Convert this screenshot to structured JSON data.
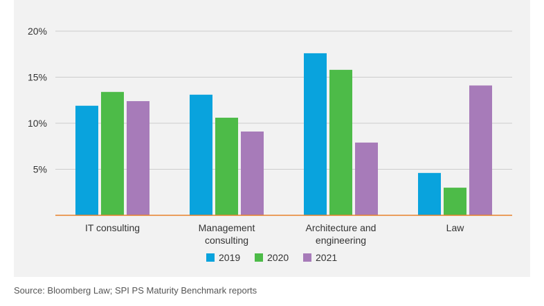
{
  "chart_data": {
    "type": "bar",
    "categories": [
      [
        "IT consulting"
      ],
      [
        "Management",
        "consulting"
      ],
      [
        "Architecture and",
        "engineering"
      ],
      [
        "Law"
      ]
    ],
    "series": [
      {
        "name": "2019",
        "color": "#09a3dd",
        "values": [
          11.9,
          13.1,
          17.6,
          4.6
        ]
      },
      {
        "name": "2020",
        "color": "#4dbb48",
        "values": [
          13.4,
          10.6,
          15.8,
          3.0
        ]
      },
      {
        "name": "2021",
        "color": "#a77bb9",
        "values": [
          12.4,
          9.1,
          7.9,
          14.1
        ]
      }
    ],
    "y_ticks": [
      {
        "value": 20,
        "label": "20%"
      },
      {
        "value": 15,
        "label": "15%"
      },
      {
        "value": 10,
        "label": "10%"
      },
      {
        "value": 5,
        "label": "5%"
      }
    ],
    "ylim": [
      0,
      20
    ],
    "grid": true,
    "legend_position": "bottom-center",
    "baseline_color": "#e8822a",
    "grid_color": "#cccccc"
  },
  "source": "Source: Bloomberg Law; SPI PS Maturity Benchmark reports"
}
